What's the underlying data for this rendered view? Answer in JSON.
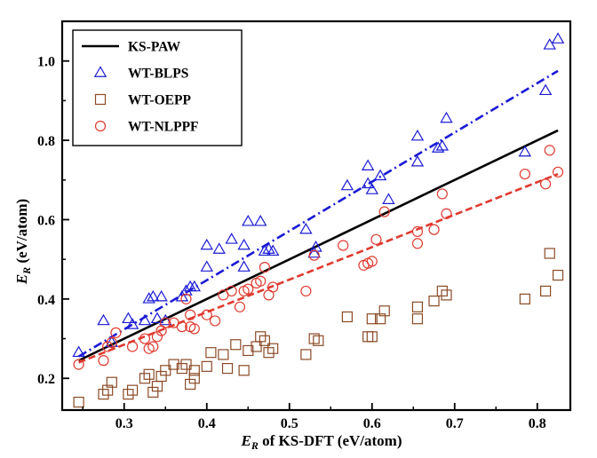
{
  "chart_data": {
    "type": "scatter",
    "xlabel": {
      "prefix": "E",
      "sub": "R",
      "suffix": " of KS-DFT (eV/atom)"
    },
    "ylabel": {
      "prefix": "E",
      "sub": "R",
      "suffix": " (eV/atom)"
    },
    "xlim": [
      0.225,
      0.84
    ],
    "ylim": [
      0.12,
      1.1
    ],
    "xticks": [
      0.3,
      0.4,
      0.5,
      0.6,
      0.7,
      0.8
    ],
    "yticks": [
      0.2,
      0.4,
      0.6,
      0.8,
      1.0
    ],
    "xtick_labels": [
      "0.3",
      "0.4",
      "0.5",
      "0.6",
      "0.7",
      "0.8"
    ],
    "ytick_labels": [
      "0.2",
      "0.4",
      "0.6",
      "0.8",
      "1.0"
    ],
    "grid": false,
    "legend_position": "top-left",
    "lines": [
      {
        "name": "KS-PAW",
        "style": "solid",
        "color": "#000000",
        "x": [
          0.245,
          0.825
        ],
        "y": [
          0.245,
          0.825
        ]
      },
      {
        "name": "WT-BLPS fit",
        "style": "dashdot",
        "color": "#1a1ad6",
        "x": [
          0.245,
          0.825
        ],
        "y": [
          0.255,
          0.975
        ]
      },
      {
        "name": "WT-NLPPF fit",
        "style": "dashed",
        "color": "#e03a2f",
        "x": [
          0.245,
          0.825
        ],
        "y": [
          0.24,
          0.715
        ]
      }
    ],
    "series": [
      {
        "name": "WT-BLPS",
        "marker": "triangle",
        "color": "#1a1ad6",
        "points": [
          [
            0.245,
            0.265
          ],
          [
            0.275,
            0.345
          ],
          [
            0.285,
            0.29
          ],
          [
            0.305,
            0.35
          ],
          [
            0.31,
            0.335
          ],
          [
            0.325,
            0.345
          ],
          [
            0.33,
            0.4
          ],
          [
            0.335,
            0.405
          ],
          [
            0.34,
            0.35
          ],
          [
            0.345,
            0.405
          ],
          [
            0.35,
            0.345
          ],
          [
            0.37,
            0.405
          ],
          [
            0.375,
            0.42
          ],
          [
            0.38,
            0.43
          ],
          [
            0.385,
            0.43
          ],
          [
            0.4,
            0.48
          ],
          [
            0.4,
            0.535
          ],
          [
            0.415,
            0.525
          ],
          [
            0.43,
            0.55
          ],
          [
            0.445,
            0.535
          ],
          [
            0.445,
            0.48
          ],
          [
            0.45,
            0.595
          ],
          [
            0.465,
            0.595
          ],
          [
            0.47,
            0.52
          ],
          [
            0.475,
            0.525
          ],
          [
            0.48,
            0.52
          ],
          [
            0.52,
            0.575
          ],
          [
            0.53,
            0.515
          ],
          [
            0.532,
            0.53
          ],
          [
            0.57,
            0.685
          ],
          [
            0.595,
            0.69
          ],
          [
            0.595,
            0.735
          ],
          [
            0.6,
            0.675
          ],
          [
            0.61,
            0.71
          ],
          [
            0.62,
            0.65
          ],
          [
            0.655,
            0.81
          ],
          [
            0.655,
            0.745
          ],
          [
            0.68,
            0.78
          ],
          [
            0.685,
            0.785
          ],
          [
            0.69,
            0.855
          ],
          [
            0.785,
            0.77
          ],
          [
            0.81,
            0.925
          ],
          [
            0.815,
            1.04
          ],
          [
            0.825,
            1.055
          ]
        ]
      },
      {
        "name": "WT-OEPP",
        "marker": "square",
        "color": "#8b4a26",
        "points": [
          [
            0.245,
            0.14
          ],
          [
            0.275,
            0.16
          ],
          [
            0.28,
            0.17
          ],
          [
            0.285,
            0.19
          ],
          [
            0.305,
            0.16
          ],
          [
            0.31,
            0.17
          ],
          [
            0.325,
            0.2
          ],
          [
            0.33,
            0.21
          ],
          [
            0.335,
            0.165
          ],
          [
            0.34,
            0.18
          ],
          [
            0.345,
            0.205
          ],
          [
            0.35,
            0.22
          ],
          [
            0.36,
            0.235
          ],
          [
            0.37,
            0.225
          ],
          [
            0.375,
            0.235
          ],
          [
            0.38,
            0.185
          ],
          [
            0.385,
            0.2
          ],
          [
            0.385,
            0.22
          ],
          [
            0.4,
            0.23
          ],
          [
            0.405,
            0.265
          ],
          [
            0.42,
            0.26
          ],
          [
            0.425,
            0.225
          ],
          [
            0.435,
            0.285
          ],
          [
            0.445,
            0.22
          ],
          [
            0.45,
            0.27
          ],
          [
            0.46,
            0.28
          ],
          [
            0.465,
            0.305
          ],
          [
            0.47,
            0.295
          ],
          [
            0.475,
            0.265
          ],
          [
            0.48,
            0.275
          ],
          [
            0.52,
            0.26
          ],
          [
            0.53,
            0.3
          ],
          [
            0.535,
            0.295
          ],
          [
            0.57,
            0.355
          ],
          [
            0.595,
            0.305
          ],
          [
            0.6,
            0.305
          ],
          [
            0.6,
            0.35
          ],
          [
            0.61,
            0.35
          ],
          [
            0.615,
            0.37
          ],
          [
            0.655,
            0.35
          ],
          [
            0.655,
            0.38
          ],
          [
            0.675,
            0.395
          ],
          [
            0.685,
            0.42
          ],
          [
            0.69,
            0.41
          ],
          [
            0.785,
            0.4
          ],
          [
            0.81,
            0.42
          ],
          [
            0.815,
            0.515
          ],
          [
            0.825,
            0.46
          ]
        ]
      },
      {
        "name": "WT-NLPPF",
        "marker": "circle",
        "color": "#e03a2f",
        "points": [
          [
            0.245,
            0.235
          ],
          [
            0.275,
            0.245
          ],
          [
            0.28,
            0.28
          ],
          [
            0.285,
            0.29
          ],
          [
            0.29,
            0.315
          ],
          [
            0.31,
            0.28
          ],
          [
            0.325,
            0.3
          ],
          [
            0.33,
            0.275
          ],
          [
            0.335,
            0.28
          ],
          [
            0.34,
            0.305
          ],
          [
            0.345,
            0.32
          ],
          [
            0.35,
            0.34
          ],
          [
            0.36,
            0.34
          ],
          [
            0.37,
            0.33
          ],
          [
            0.375,
            0.4
          ],
          [
            0.38,
            0.33
          ],
          [
            0.38,
            0.36
          ],
          [
            0.385,
            0.325
          ],
          [
            0.4,
            0.36
          ],
          [
            0.41,
            0.345
          ],
          [
            0.42,
            0.41
          ],
          [
            0.43,
            0.42
          ],
          [
            0.44,
            0.38
          ],
          [
            0.445,
            0.42
          ],
          [
            0.45,
            0.425
          ],
          [
            0.46,
            0.44
          ],
          [
            0.465,
            0.445
          ],
          [
            0.47,
            0.48
          ],
          [
            0.475,
            0.41
          ],
          [
            0.48,
            0.43
          ],
          [
            0.52,
            0.42
          ],
          [
            0.53,
            0.51
          ],
          [
            0.565,
            0.535
          ],
          [
            0.59,
            0.485
          ],
          [
            0.595,
            0.49
          ],
          [
            0.6,
            0.495
          ],
          [
            0.605,
            0.55
          ],
          [
            0.615,
            0.62
          ],
          [
            0.655,
            0.57
          ],
          [
            0.655,
            0.54
          ],
          [
            0.675,
            0.575
          ],
          [
            0.685,
            0.665
          ],
          [
            0.69,
            0.615
          ],
          [
            0.785,
            0.715
          ],
          [
            0.81,
            0.69
          ],
          [
            0.815,
            0.775
          ],
          [
            0.825,
            0.72
          ]
        ]
      }
    ],
    "legend": [
      {
        "label": "KS-PAW",
        "kind": "line",
        "style": "solid",
        "color": "#000000"
      },
      {
        "label": "WT-BLPS",
        "kind": "marker",
        "marker": "triangle",
        "color": "#1a1ad6"
      },
      {
        "label": "WT-OEPP",
        "kind": "marker",
        "marker": "square",
        "color": "#8b4a26"
      },
      {
        "label": "WT-NLPPF",
        "kind": "marker",
        "marker": "circle",
        "color": "#e03a2f"
      }
    ]
  }
}
